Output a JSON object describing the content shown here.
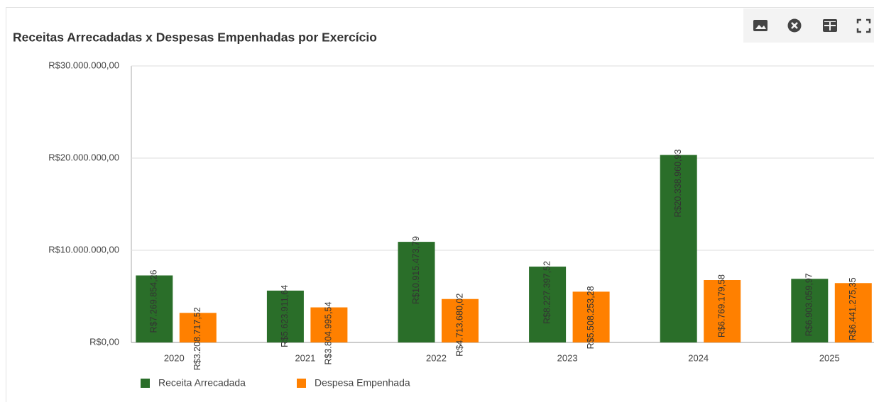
{
  "chart_data": {
    "type": "bar",
    "title": "Receitas Arrecadadas x Despesas Empenhadas por Exercício",
    "categories": [
      "2020",
      "2021",
      "2022",
      "2023",
      "2024",
      "2025"
    ],
    "series": [
      {
        "name": "Receita Arrecadada",
        "color": "#2a6e29",
        "values": [
          7269854.26,
          5623911.64,
          10915473.79,
          8227397.52,
          20338960.93,
          6903059.97
        ],
        "value_labels": [
          "R$7.269.854,26",
          "R$5.623.911,64",
          "R$10.915.473,79",
          "R$8.227.397,52",
          "R$20.338.960,93",
          "R$6.903.059,97"
        ]
      },
      {
        "name": "Despesa Empenhada",
        "color": "#ff8000",
        "values": [
          3208717.52,
          3804995.54,
          4713680.02,
          5508253.28,
          6769179.58,
          6441275.35
        ],
        "value_labels": [
          "R$3.208.717,52",
          "R$3.804.995,54",
          "R$4.713.680,02",
          "R$5.508.253,28",
          "R$6.769.179,58",
          "R$6.441.275,35"
        ]
      }
    ],
    "ylim": [
      0,
      30000000
    ],
    "yticks": [
      {
        "value": 0,
        "label": "R$0,00"
      },
      {
        "value": 10000000,
        "label": "R$10.000.000,00"
      },
      {
        "value": 20000000,
        "label": "R$20.000.000,00"
      },
      {
        "value": 30000000,
        "label": "R$30.000.000,00"
      }
    ],
    "grid": true
  }
}
